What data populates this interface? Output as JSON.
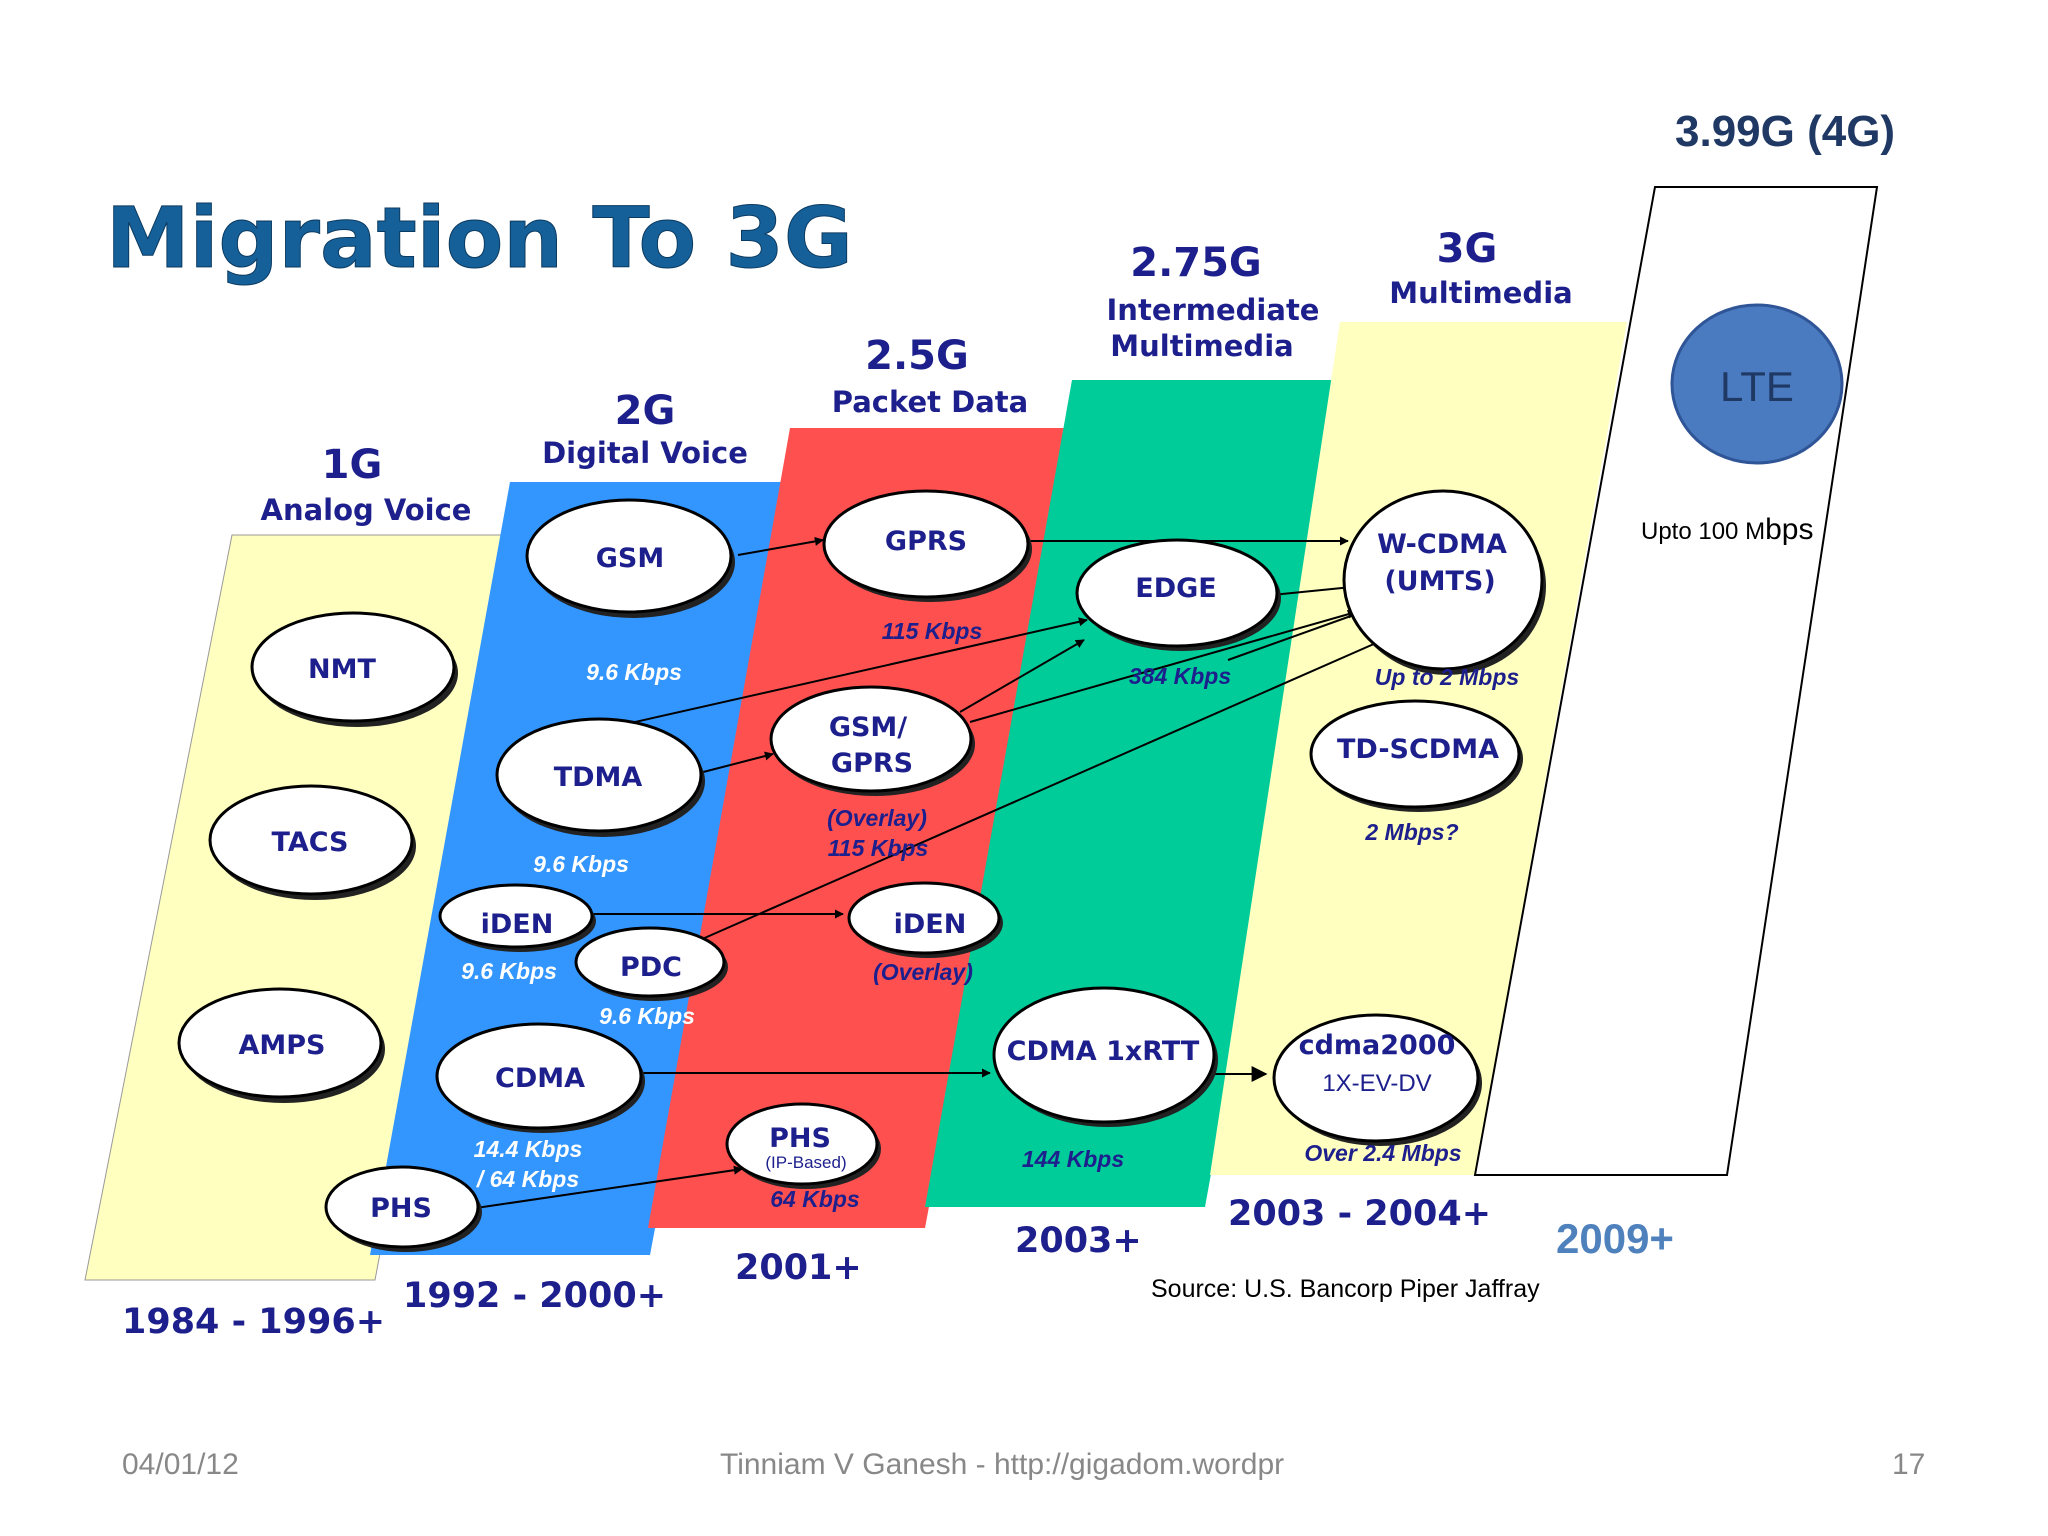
{
  "slide": {
    "title": "Migration To 3G",
    "top_right_label": "3.99G (4G)",
    "source": "Source: U.S. Bancorp Piper Jaffray"
  },
  "colors": {
    "title_blue": "#16609a",
    "label_navy": "#1c1f8c",
    "band_yellow": "#ffffc0",
    "band_blue": "#3396ff",
    "band_red": "#ff5050",
    "band_green": "#00cc99",
    "lte_blue": "#4a7bc0",
    "year_2009": "#4f81bd"
  },
  "generations": {
    "g1": {
      "name": "1G",
      "desc": "Analog Voice",
      "years": "1984 - 1996+"
    },
    "g2": {
      "name": "2G",
      "desc": "Digital Voice",
      "years": "1992 - 2000+"
    },
    "g25": {
      "name": "2.5G",
      "desc": "Packet Data",
      "years": "2001+"
    },
    "g275": {
      "name": "2.75G",
      "desc_line1": "Intermediate",
      "desc_line2": "Multimedia",
      "years": "2003+"
    },
    "g3": {
      "name": "3G",
      "desc": "Multimedia",
      "years": "2003 - 2004+"
    },
    "g4": {
      "lte": "LTE",
      "speed_prefix": "Upto  100 M",
      "speed_suffix": "bps",
      "years": "2009+"
    }
  },
  "technologies": {
    "nmt": "NMT",
    "tacs": "TACS",
    "amps": "AMPS",
    "gsm": "GSM",
    "tdma": "TDMA",
    "iden_2g": "iDEN",
    "pdc": "PDC",
    "cdma": "CDMA",
    "phs_2g": "PHS",
    "gprs": "GPRS",
    "gsm_gprs_line1": "GSM/",
    "gsm_gprs_line2": "GPRS",
    "iden_25": "iDEN",
    "phs_25": "PHS",
    "phs_25_sub": "(IP-Based)",
    "edge": "EDGE",
    "cdma_1xrtt": "CDMA 1xRTT",
    "wcdma_line1": "W-CDMA",
    "wcdma_line2": "(UMTS)",
    "td_scdma": "TD-SCDMA",
    "cdma2000_line1": "cdma2000",
    "cdma2000_line2": "1X-EV-DV"
  },
  "speeds": {
    "gsm": "9.6 Kbps",
    "tdma": "9.6 Kbps",
    "iden": "9.6 Kbps",
    "pdc": "9.6 Kbps",
    "cdma_line1": "14.4 Kbps",
    "cdma_line2": "/ 64 Kbps",
    "gprs": "115 Kbps",
    "gsm_gprs_note": "(Overlay)",
    "gsm_gprs": "115 Kbps",
    "iden_overlay": "(Overlay)",
    "phs_ip": "64 Kbps",
    "edge": "384 Kbps",
    "cdma_1xrtt": "144 Kbps",
    "wcdma": "Up to 2 Mbps",
    "td_scdma": "2 Mbps?",
    "cdma2000": "Over 2.4 Mbps"
  },
  "footer": {
    "date": "04/01/12",
    "author": "Tinniam V Ganesh - http://gigadom.wordpr",
    "page": "17"
  }
}
